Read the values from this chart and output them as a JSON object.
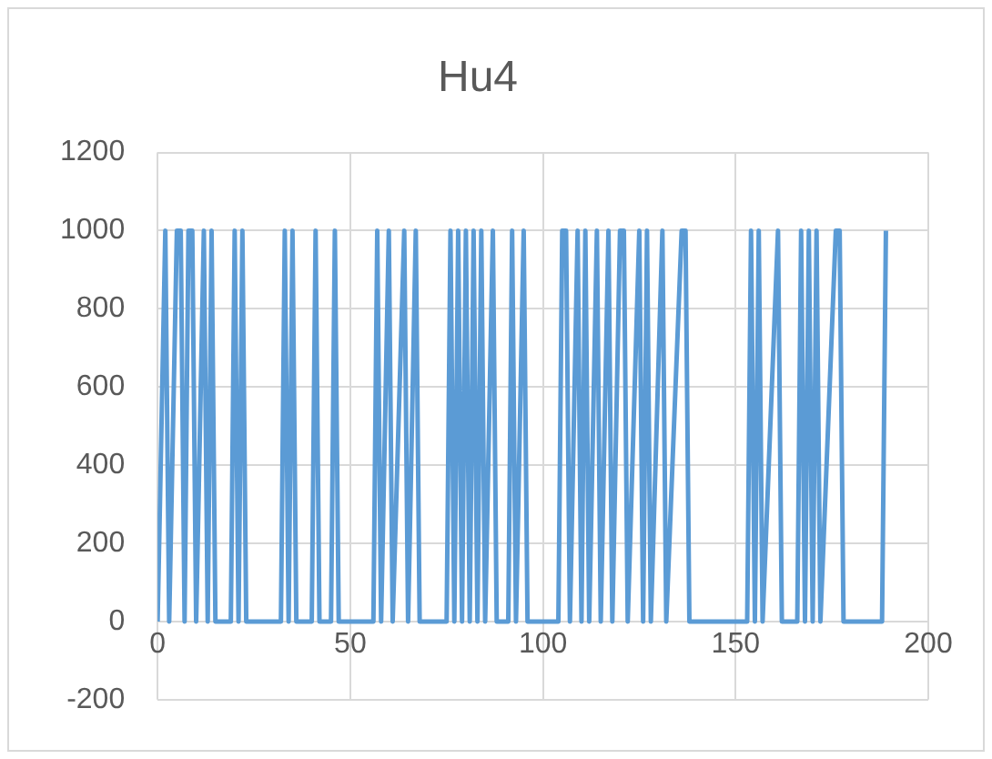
{
  "chart_data": {
    "type": "line",
    "title": "Hu4",
    "x": [
      0,
      2,
      3,
      5,
      6,
      7,
      8,
      9,
      10,
      12,
      13,
      14,
      15,
      19,
      20,
      21,
      22,
      23,
      32,
      33,
      34,
      35,
      36,
      40,
      41,
      42,
      45,
      46,
      47,
      56,
      57,
      58,
      60,
      61,
      64,
      65,
      67,
      68,
      75,
      76,
      77,
      78,
      79,
      80,
      81,
      82,
      83,
      84,
      85,
      87,
      88,
      91,
      92,
      93,
      95,
      96,
      104,
      105,
      106,
      107,
      109,
      110,
      111,
      112,
      114,
      115,
      117,
      118,
      120,
      121,
      122,
      125,
      126,
      127,
      128,
      131,
      132,
      136,
      137,
      138,
      153,
      154,
      155,
      156,
      157,
      161,
      162,
      166,
      167,
      168,
      169,
      170,
      171,
      172,
      176,
      177,
      178,
      188,
      189
    ],
    "series": [
      {
        "color": "#5b9bd5",
        "values": [
          0,
          1000,
          0,
          1000,
          1000,
          0,
          1000,
          1000,
          0,
          1000,
          0,
          1000,
          0,
          0,
          1000,
          0,
          1000,
          0,
          0,
          1000,
          0,
          1000,
          0,
          0,
          1000,
          0,
          0,
          1000,
          0,
          0,
          1000,
          0,
          1000,
          0,
          1000,
          0,
          1000,
          0,
          0,
          1000,
          0,
          1000,
          0,
          1000,
          0,
          1000,
          0,
          1000,
          0,
          1000,
          0,
          0,
          1000,
          0,
          1000,
          0,
          0,
          1000,
          1000,
          0,
          1000,
          0,
          1000,
          0,
          1000,
          0,
          1000,
          0,
          1000,
          1000,
          0,
          1000,
          0,
          1000,
          0,
          1000,
          0,
          1000,
          1000,
          0,
          0,
          1000,
          0,
          1000,
          0,
          1000,
          0,
          0,
          1000,
          0,
          1000,
          0,
          1000,
          0,
          1000,
          1000,
          0,
          0,
          1000
        ]
      }
    ],
    "xlim": [
      0,
      200
    ],
    "xticks": [
      0,
      50,
      100,
      150,
      200
    ],
    "ylim": [
      -200,
      1200
    ],
    "yticks": [
      -200,
      0,
      200,
      400,
      600,
      800,
      1000,
      1200
    ],
    "grid": true,
    "legend": false,
    "marker": "none",
    "line_style": "solid"
  }
}
